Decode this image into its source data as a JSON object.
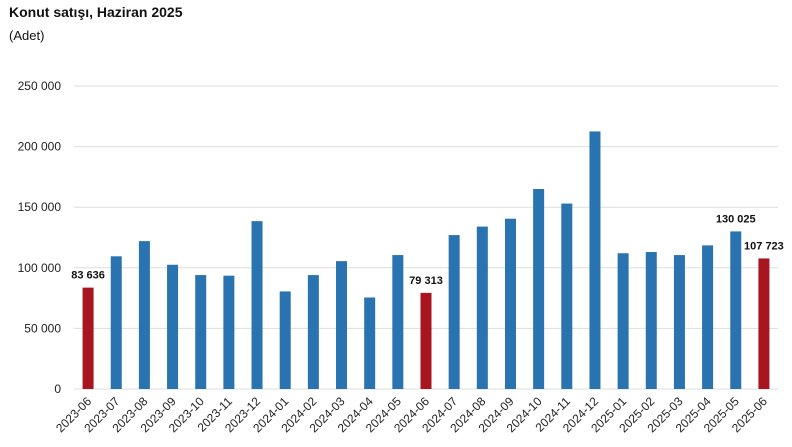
{
  "title": "Konut satışı, Haziran 2025",
  "subtitle": "(Adet)",
  "chart_data": {
    "type": "bar",
    "categories": [
      "2023-06",
      "2023-07",
      "2023-08",
      "2023-09",
      "2023-10",
      "2023-11",
      "2023-12",
      "2024-01",
      "2024-02",
      "2024-03",
      "2024-04",
      "2024-05",
      "2024-06",
      "2024-07",
      "2024-08",
      "2024-09",
      "2024-10",
      "2024-11",
      "2024-12",
      "2025-01",
      "2025-02",
      "2025-03",
      "2025-04",
      "2025-05",
      "2025-06"
    ],
    "values": [
      83636,
      109500,
      122000,
      102500,
      94000,
      93500,
      138500,
      80500,
      94000,
      105500,
      75500,
      110500,
      79313,
      127000,
      134000,
      140500,
      165000,
      153000,
      212500,
      112000,
      113000,
      110500,
      118500,
      130025,
      107723
    ],
    "highlight": [
      0,
      12,
      24
    ],
    "data_labels": [
      {
        "index": 0,
        "text": "83 636"
      },
      {
        "index": 12,
        "text": "79 313"
      },
      {
        "index": 23,
        "text": "130 025"
      },
      {
        "index": 24,
        "text": "107 723"
      }
    ],
    "ylim": [
      0,
      250000
    ],
    "yticks": [
      0,
      50000,
      100000,
      150000,
      200000,
      250000
    ],
    "ytick_labels": [
      "0",
      "50 000",
      "100 000",
      "150 000",
      "200 000",
      "250 000"
    ],
    "xlabel": "",
    "ylabel": "",
    "colors": {
      "default": "#2873b0",
      "highlight": "#a8151f",
      "grid": "#dddddd"
    },
    "grid": true,
    "legend": "none"
  }
}
